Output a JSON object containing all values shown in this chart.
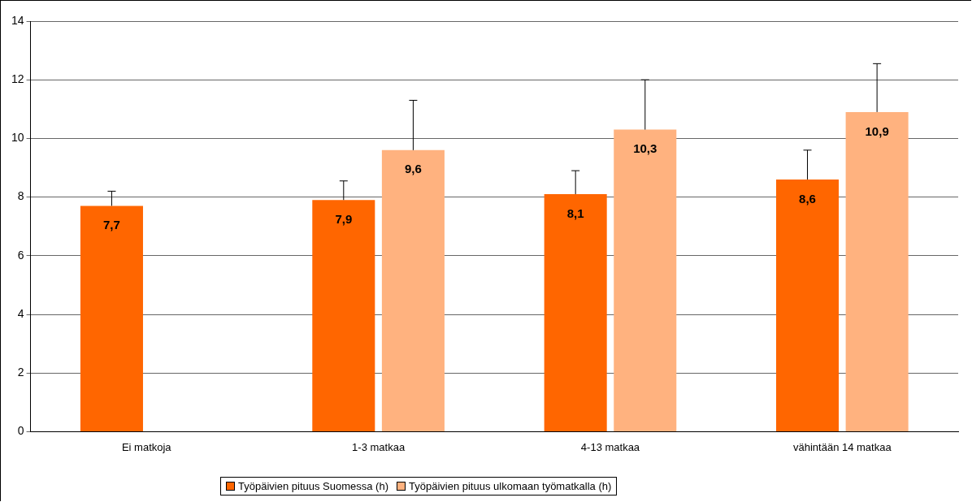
{
  "chart_data": {
    "type": "bar",
    "categories": [
      "Ei matkoja",
      "1-3 matkaa",
      "4-13 matkaa",
      "vähintään 14 matkaa"
    ],
    "series": [
      {
        "name": "Työpäivien pituus Suomessa (h)",
        "color": "#ff6600",
        "values": [
          7.7,
          7.9,
          8.1,
          8.6
        ],
        "value_labels": [
          "7,7",
          "7,9",
          "8,1",
          "8,6"
        ],
        "errors": [
          [
            7.7,
            8.2
          ],
          [
            7.9,
            8.55
          ],
          [
            8.1,
            8.9
          ],
          [
            8.6,
            9.6
          ]
        ]
      },
      {
        "name": "Työpäivien pituus ulkomaan työmatkalla (h)",
        "color": "#ffb27f",
        "values": [
          null,
          9.6,
          10.3,
          10.9
        ],
        "value_labels": [
          null,
          "9,6",
          "10,3",
          "10,9"
        ],
        "errors": [
          null,
          [
            9.6,
            11.3
          ],
          [
            10.3,
            12.0
          ],
          [
            10.9,
            12.55
          ]
        ]
      }
    ],
    "ylim": [
      0,
      14
    ],
    "yticks": [
      0,
      2,
      4,
      6,
      8,
      10,
      12,
      14
    ],
    "grid": "y",
    "legend": "bottom"
  }
}
